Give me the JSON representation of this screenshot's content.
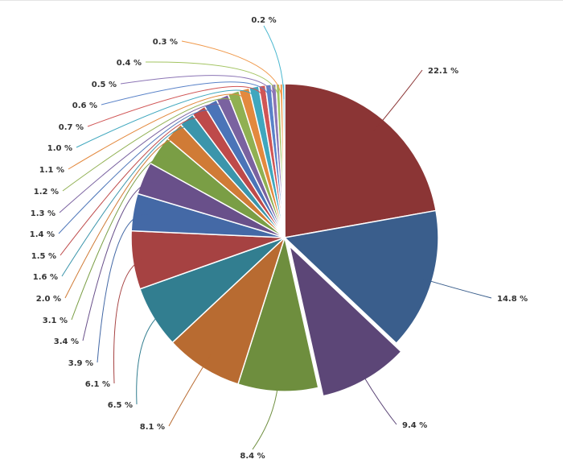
{
  "chart_data": {
    "type": "pie",
    "title": "",
    "legend": "none",
    "start_angle_deg": 0,
    "direction": "clockwise",
    "slices": [
      {
        "label": "22.1 %",
        "value": 22.1,
        "color": "#8B3535"
      },
      {
        "label": "14.8 %",
        "value": 14.8,
        "color": "#3A5E8C"
      },
      {
        "label": "9.4 %",
        "value": 9.4,
        "color": "#5C4677",
        "exploded": true
      },
      {
        "label": "8.4 %",
        "value": 8.4,
        "color": "#6E8E3E"
      },
      {
        "label": "8.1 %",
        "value": 8.1,
        "color": "#B86B31"
      },
      {
        "label": "6.5 %",
        "value": 6.5,
        "color": "#327E90"
      },
      {
        "label": "6.1 %",
        "value": 6.1,
        "color": "#A64242"
      },
      {
        "label": "3.9 %",
        "value": 3.9,
        "color": "#4469A6"
      },
      {
        "label": "3.4 %",
        "value": 3.4,
        "color": "#69508A"
      },
      {
        "label": "3.1 %",
        "value": 3.1,
        "color": "#7A9E45"
      },
      {
        "label": "2.0 %",
        "value": 2.0,
        "color": "#D07B36"
      },
      {
        "label": "1.6 %",
        "value": 1.6,
        "color": "#3B95AB"
      },
      {
        "label": "1.5 %",
        "value": 1.5,
        "color": "#BE4A4A"
      },
      {
        "label": "1.4 %",
        "value": 1.4,
        "color": "#4B74B8"
      },
      {
        "label": "1.3 %",
        "value": 1.3,
        "color": "#7A62A0"
      },
      {
        "label": "1.2 %",
        "value": 1.2,
        "color": "#90B052"
      },
      {
        "label": "1.1 %",
        "value": 1.1,
        "color": "#E3893E"
      },
      {
        "label": "1.0 %",
        "value": 1.0,
        "color": "#3FA7BE"
      },
      {
        "label": "0.7 %",
        "value": 0.7,
        "color": "#D05555"
      },
      {
        "label": "0.6 %",
        "value": 0.6,
        "color": "#5982C8"
      },
      {
        "label": "0.5 %",
        "value": 0.5,
        "color": "#8C75B5"
      },
      {
        "label": "0.4 %",
        "value": 0.4,
        "color": "#A3C462"
      },
      {
        "label": "0.3 %",
        "value": 0.3,
        "color": "#F0994B"
      },
      {
        "label": "0.2 %",
        "value": 0.2,
        "color": "#4CB8D0"
      }
    ]
  }
}
